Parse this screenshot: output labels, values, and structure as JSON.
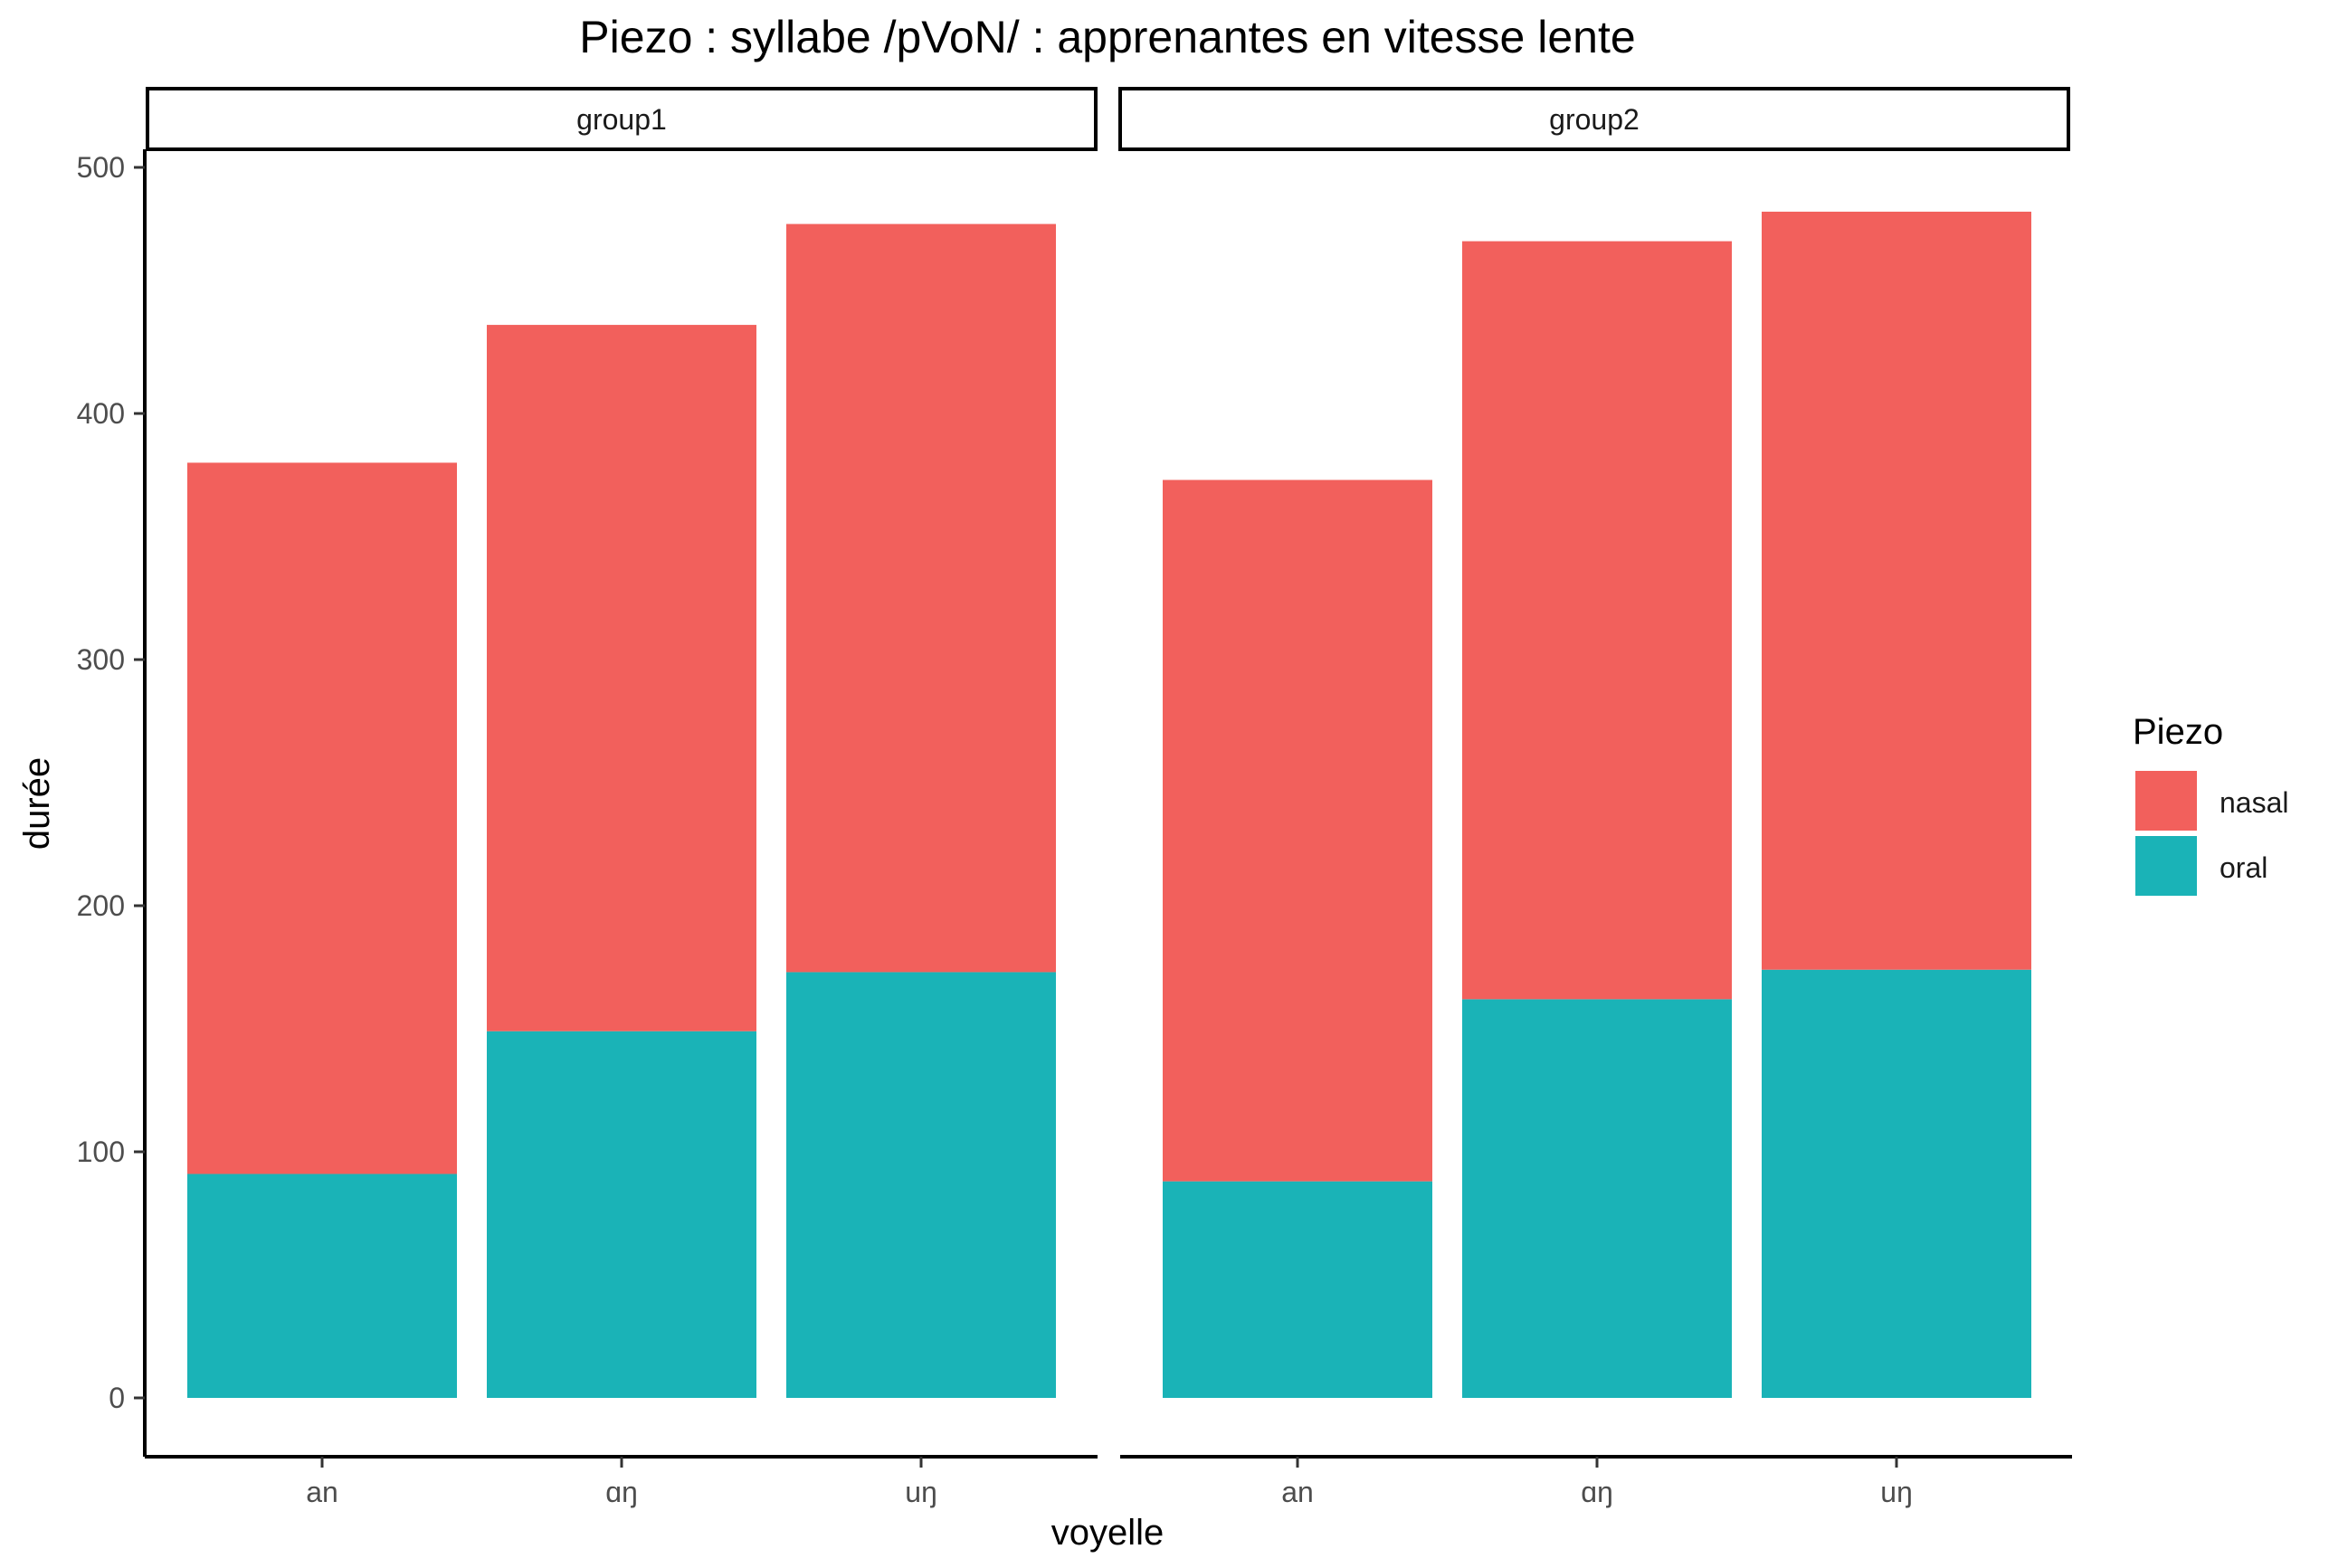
{
  "chart_data": {
    "type": "bar",
    "stacked": true,
    "title": "Piezo : syllabe /pVoN/ : apprenantes en vitesse lente",
    "xlabel": "voyelle",
    "ylabel": "durée",
    "ylim": [
      0,
      500
    ],
    "yticks": [
      0,
      100,
      200,
      300,
      400,
      500
    ],
    "categories": [
      "an",
      "ɑŋ",
      "uŋ"
    ],
    "legend": {
      "title": "Piezo",
      "position": "right",
      "entries": [
        "nasal",
        "oral"
      ]
    },
    "colors": {
      "nasal": "#F2605C",
      "oral": "#1AB3B7"
    },
    "grid": false,
    "panels": [
      {
        "label": "group1",
        "series": [
          {
            "name": "oral",
            "values": [
              91,
              149,
              173
            ]
          },
          {
            "name": "nasal",
            "values": [
              289,
              287,
              304
            ]
          }
        ]
      },
      {
        "label": "group2",
        "series": [
          {
            "name": "oral",
            "values": [
              88,
              162,
              174
            ]
          },
          {
            "name": "nasal",
            "values": [
              285,
              308,
              308
            ]
          }
        ]
      }
    ]
  }
}
